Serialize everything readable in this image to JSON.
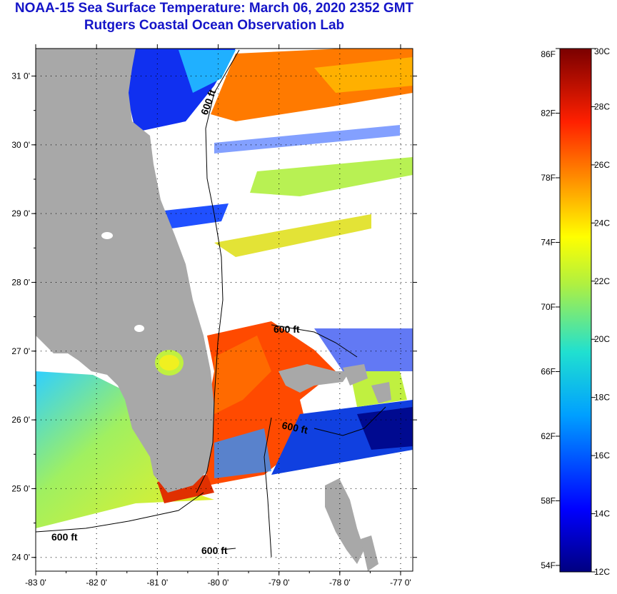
{
  "title": "NOAA-15 Sea Surface Temperature:  March 06, 2020 2352 GMT",
  "subtitle": "Rutgers Coastal Ocean Observation Lab",
  "map": {
    "lat_range": [
      23.8,
      31.4
    ],
    "lon_range": [
      -83,
      -76.8
    ],
    "lat_ticks": [
      {
        "value": 31,
        "label": "31 0'"
      },
      {
        "value": 30,
        "label": "30 0'"
      },
      {
        "value": 29,
        "label": "29 0'"
      },
      {
        "value": 28,
        "label": "28 0'"
      },
      {
        "value": 27,
        "label": "27 0'"
      },
      {
        "value": 26,
        "label": "26 0'"
      },
      {
        "value": 25,
        "label": "25 0'"
      },
      {
        "value": 24,
        "label": "24 0'"
      }
    ],
    "lon_ticks": [
      {
        "value": -83,
        "label": "-83 0'"
      },
      {
        "value": -82,
        "label": "-82 0'"
      },
      {
        "value": -81,
        "label": "-81 0'"
      },
      {
        "value": -80,
        "label": "-80 0'"
      },
      {
        "value": -79,
        "label": "-79 0'"
      },
      {
        "value": -78,
        "label": "-78 0'"
      },
      {
        "value": -77,
        "label": "-77 0'"
      }
    ],
    "contour_labels": [
      "600 ft",
      "600 ft",
      "600 ft",
      "600 ft",
      "600 ft"
    ],
    "colors": {
      "land": "#a8a8a8",
      "cloud": "#ffffff",
      "grid": "#000000"
    }
  },
  "colorbar": {
    "min_c": 12,
    "max_c": 30,
    "f_labels": [
      "86F",
      "82F",
      "78F",
      "74F",
      "70F",
      "66F",
      "62F",
      "58F",
      "54F"
    ],
    "c_labels": [
      "30C",
      "28C",
      "26C",
      "24C",
      "22C",
      "20C",
      "18C",
      "16C",
      "14C",
      "12C"
    ]
  }
}
